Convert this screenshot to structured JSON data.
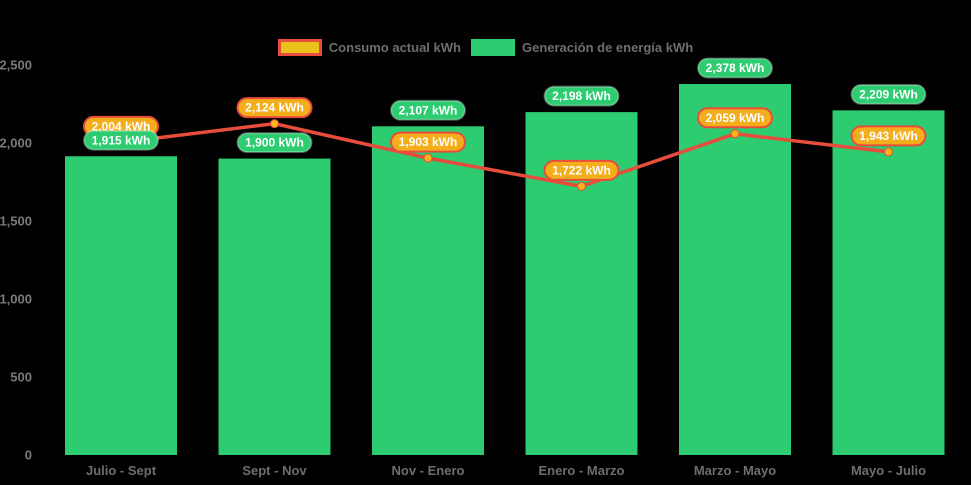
{
  "chart_data": {
    "type": "bar",
    "title": "",
    "xlabel": "",
    "ylabel": "",
    "categories": [
      "Julio - Sept",
      "Sept - Nov",
      "Nov - Enero",
      "Enero - Marzo",
      "Marzo - Mayo",
      "Mayo - Julio"
    ],
    "series": [
      {
        "name": "Generación de energía kWh",
        "type": "bar",
        "values": [
          1915,
          1900,
          2107,
          2198,
          2378,
          2209
        ],
        "labels": [
          "1,915 kWh",
          "1,900 kWh",
          "2,107 kWh",
          "2,198 kWh",
          "2,378 kWh",
          "2,209 kWh"
        ],
        "color": "#2ecc71",
        "label_fill": "#2ecc71",
        "label_border": "rgba(255,255,255,0.3)"
      },
      {
        "name": "Consumo actual kWh",
        "type": "line",
        "values": [
          2004,
          2124,
          1903,
          1722,
          2059,
          1943
        ],
        "labels": [
          "2,004 kWh",
          "2,124 kWh",
          "1,903 kWh",
          "1,722 kWh",
          "2,059 kWh",
          "1,943 kWh"
        ],
        "line_color": "#e74c3c",
        "marker_color": "#fcb31c",
        "label_fill": "#f4ad1b",
        "label_border": "#e74c3c"
      }
    ],
    "ylim": [
      0,
      2500
    ],
    "yticks": [
      0,
      500,
      1000,
      1500,
      2000,
      2500
    ],
    "ytick_labels": [
      "0",
      "500",
      "1,000",
      "1,500",
      "2,000",
      "2,500"
    ],
    "grid": false,
    "legend_position": "top",
    "background": "#000000",
    "axis_text_color": "#7a7a7a"
  },
  "legend": {
    "items": [
      {
        "label": "Consumo actual kWh",
        "icon": "consumption-swatch-icon",
        "swatch_fill": "#eac21b",
        "swatch_border": "#e74c3c"
      },
      {
        "label": "Generación de energía kWh",
        "icon": "generation-swatch-icon",
        "swatch_fill": "#2ecc71",
        "swatch_border": ""
      }
    ]
  }
}
